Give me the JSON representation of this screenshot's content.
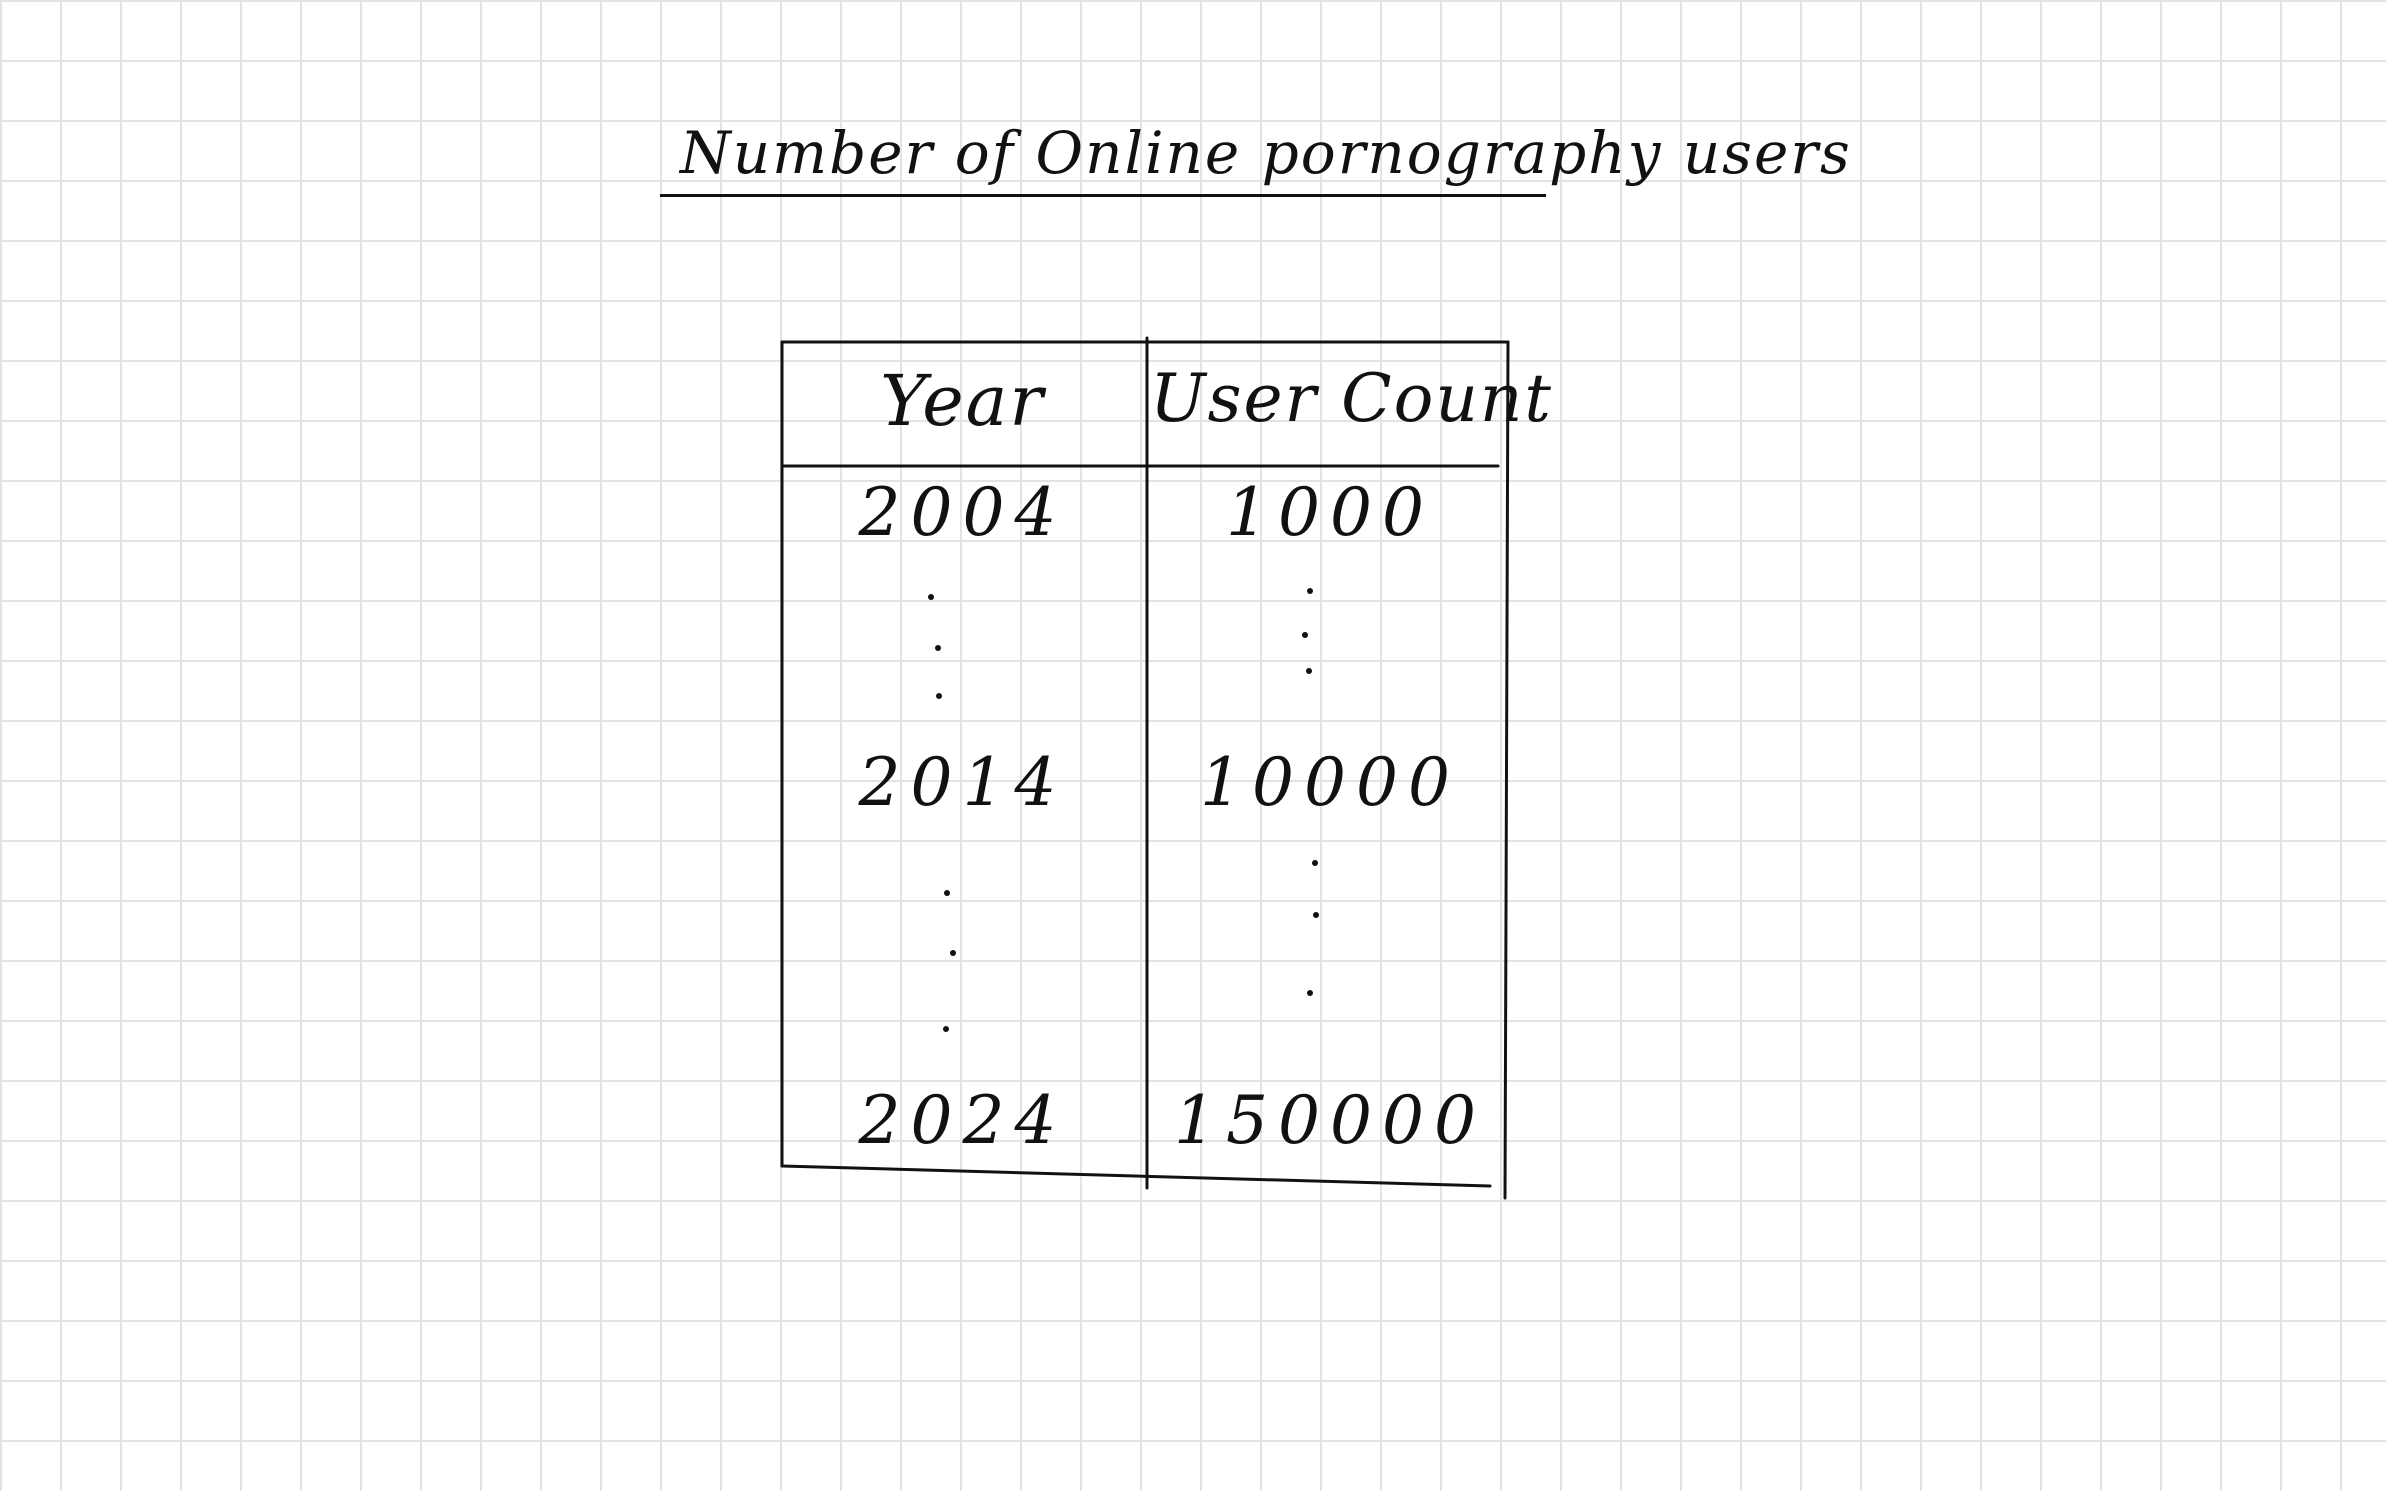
{
  "note": {
    "title": "Number of Online pornography users",
    "table": {
      "headers": [
        "Year",
        "User Count"
      ],
      "rows": [
        {
          "year": "2004",
          "count": "1000"
        },
        {
          "year": "2014",
          "count": "10000"
        },
        {
          "year": "2024",
          "count": "150000"
        }
      ]
    },
    "colors": {
      "ink": "#111111",
      "grid": "#e3e3e6",
      "paper": "#ffffff"
    }
  }
}
